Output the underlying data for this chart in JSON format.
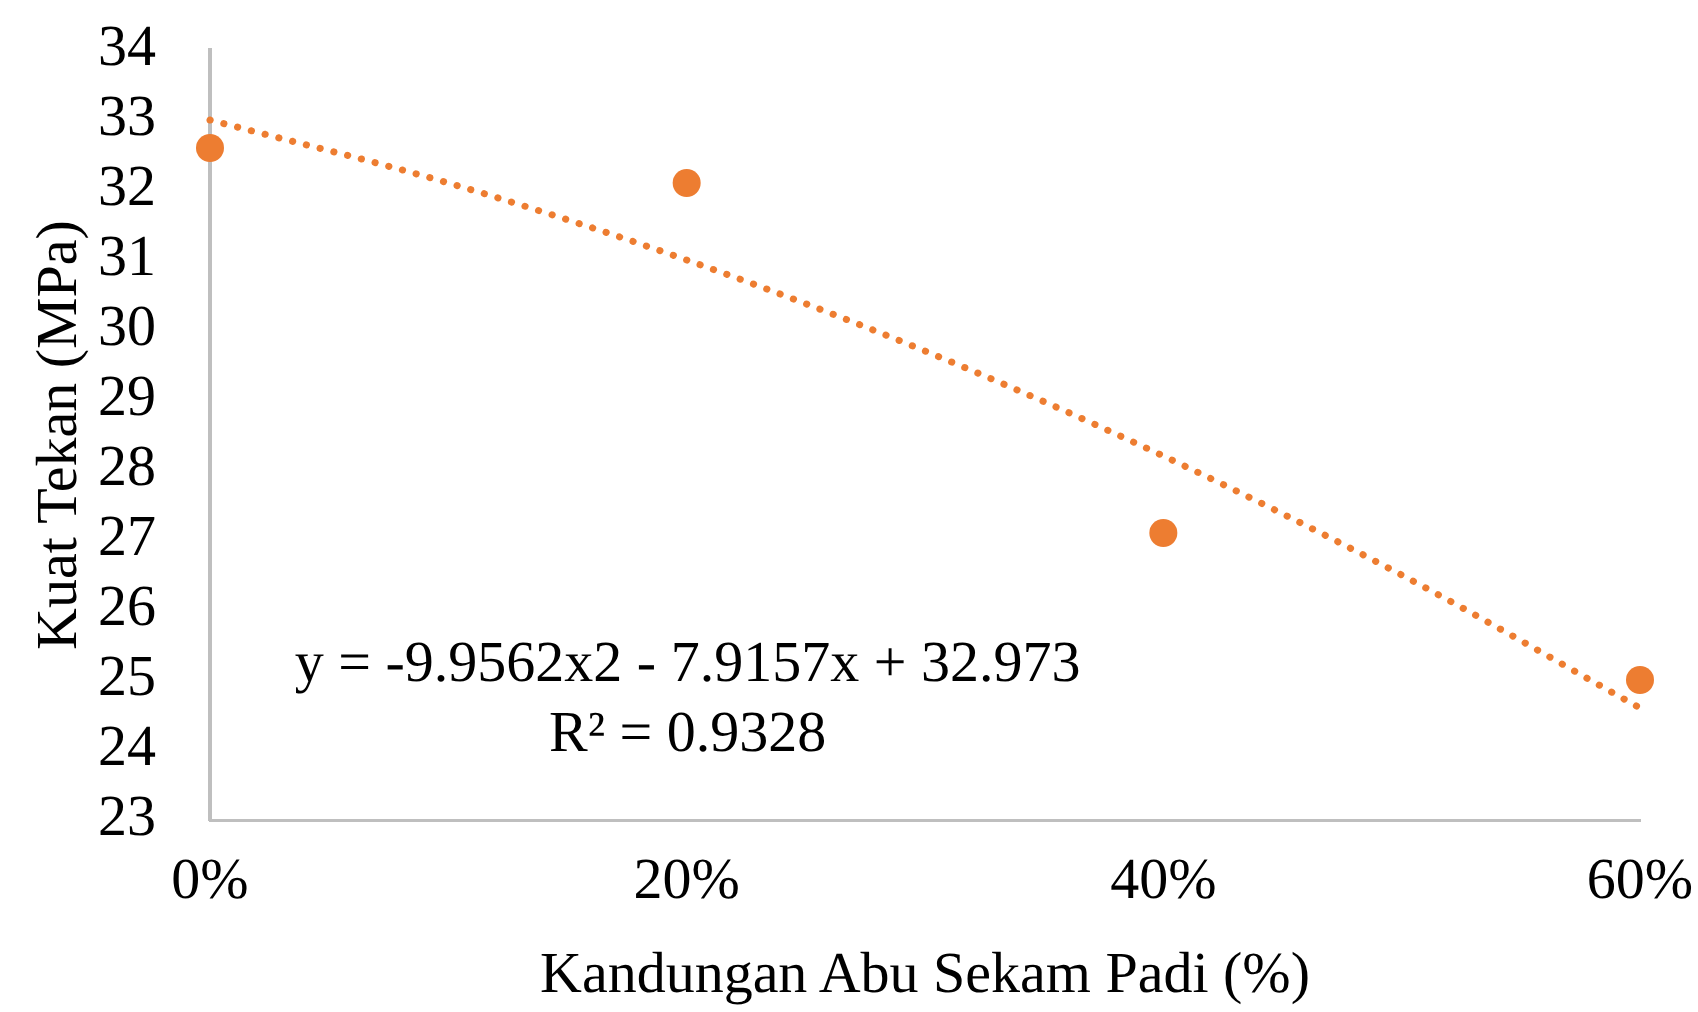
{
  "chart_data": {
    "type": "scatter",
    "xlabel": "Kandungan Abu Sekam Padi (%)",
    "ylabel": "Kuat Tekan (MPa)",
    "series": [
      {
        "type": "scatter",
        "color": "#ed7d31",
        "marker": "circle",
        "x": [
          0,
          0.2,
          0.4,
          0.6
        ],
        "values": [
          32.6,
          32.1,
          27.1,
          25.0
        ]
      },
      {
        "type": "line",
        "color": "#ed7d31",
        "marker": "none",
        "line_style": "dotted",
        "x": [
          0,
          0.1,
          0.2,
          0.3,
          0.4,
          0.5,
          0.6
        ],
        "values": [
          33.0,
          32.1,
          31.0,
          29.7,
          28.2,
          26.5,
          24.6
        ]
      }
    ],
    "xlim": [
      0,
      0.6
    ],
    "xticks": [
      {
        "value": 0,
        "label": "0%"
      },
      {
        "value": 0.2,
        "label": "20%"
      },
      {
        "value": 0.4,
        "label": "40%"
      },
      {
        "value": 0.6,
        "label": "60%"
      }
    ],
    "ylim": [
      23,
      34
    ],
    "yticks": [
      23,
      24,
      25,
      26,
      27,
      28,
      29,
      30,
      31,
      32,
      33,
      34
    ],
    "annotations": [
      "y = -9.9562x2 - 7.9157x + 32.973",
      "R² = 0.9328"
    ]
  }
}
